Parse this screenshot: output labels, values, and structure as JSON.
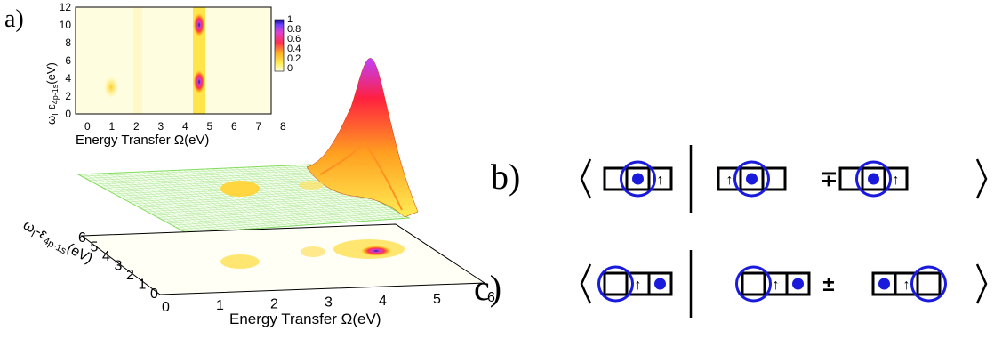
{
  "panel_labels": {
    "a": "a)",
    "b": "b)",
    "c": "c)"
  },
  "inset": {
    "xlabel": "Energy Transfer Ω(eV)",
    "ylabel": "ω",
    "ylabel_sub": "I",
    "ylabel_mid": "-ε",
    "ylabel_sub2": "4p-1s",
    "ylabel_unit": "(eV)",
    "xticks": [
      "0",
      "1",
      "2",
      "3",
      "4",
      "5",
      "6",
      "7",
      "8"
    ],
    "yticks": [
      "0",
      "2",
      "4",
      "6",
      "8",
      "10",
      "12"
    ],
    "colorbar_ticks": [
      "1",
      "0.8",
      "0.6",
      "0.4",
      "0.2",
      "0"
    ]
  },
  "main3d": {
    "xlabel": "Energy Transfer Ω(eV)",
    "xticks": [
      "0",
      "1",
      "2",
      "3",
      "4",
      "5",
      "6"
    ],
    "yticks": [
      "0",
      "1",
      "2",
      "3",
      "4",
      "5",
      "6"
    ],
    "ylabel": "ω",
    "ylabel_sub": "I",
    "ylabel_mid": "-ε",
    "ylabel_sub2": "4p-1s",
    "ylabel_unit": "(eV)"
  },
  "diagrams": {
    "separator": "|",
    "b_sign": "∓",
    "c_sign": "±",
    "arrow_glyph": "↑"
  },
  "colors": {
    "circle": "#1a1adc",
    "dot": "#1a1adc",
    "box": "#000000",
    "mesh": "#7fdc5a"
  }
}
